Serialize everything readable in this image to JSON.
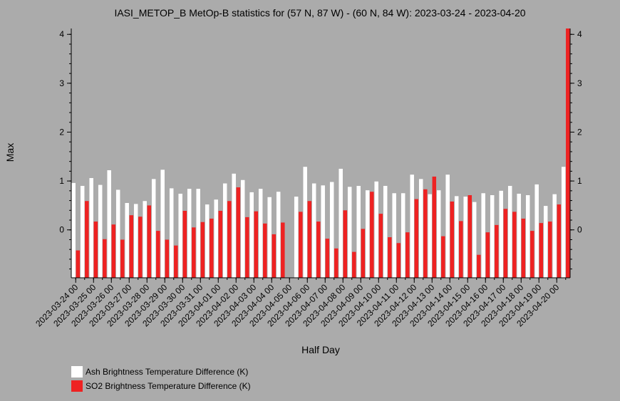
{
  "chart_data": {
    "type": "bar",
    "title": "IASI_METOP_B MetOp-B statistics for (57 N, 87 W) - (60 N, 84 W): 2023-03-24 - 2023-04-20",
    "xlabel": "Half Day",
    "ylabel": "Max",
    "ylim": [
      -0.98,
      4.12
    ],
    "yticks": [
      "0",
      "1",
      "2",
      "3",
      "4"
    ],
    "xtick_labels": [
      "2023-03-24 00",
      "2023-03-25 00",
      "2023-03-26 00",
      "2023-03-27 00",
      "2023-03-28 00",
      "2023-03-29 00",
      "2023-03-30 00",
      "2023-03-31 00",
      "2023-04-01 00",
      "2023-04-02 00",
      "2023-04-03 00",
      "2023-04-04 00",
      "2023-04-05 00",
      "2023-04-06 00",
      "2023-04-07 00",
      "2023-04-08 00",
      "2023-04-09 00",
      "2023-04-10 00",
      "2023-04-11 00",
      "2023-04-12 00",
      "2023-04-13 00",
      "2023-04-14 00",
      "2023-04-15 00",
      "2023-04-16 00",
      "2023-04-17 00",
      "2023-04-18 00",
      "2023-04-19 00",
      "2023-04-20 00"
    ],
    "grid": false,
    "legend_placement": "bottom-left",
    "series": [
      {
        "name": "Ash Brightness Temperature Difference (K)",
        "color": "#ffffff",
        "values": [
          0.96,
          0.9,
          1.06,
          0.92,
          1.22,
          0.82,
          0.55,
          0.53,
          0.59,
          1.04,
          1.23,
          0.85,
          0.74,
          0.84,
          0.84,
          0.52,
          0.62,
          0.95,
          1.15,
          1.02,
          0.77,
          0.84,
          0.67,
          0.78,
          null,
          0.68,
          1.29,
          0.95,
          0.91,
          0.98,
          1.25,
          0.88,
          0.9,
          0.81,
          0.99,
          0.9,
          0.75,
          0.75,
          1.13,
          1.04,
          0.73,
          0.81,
          1.13,
          0.69,
          0.68,
          0.57,
          0.75,
          0.71,
          0.8,
          0.9,
          0.74,
          0.71,
          0.93,
          0.49,
          0.73,
          1.29
        ]
      },
      {
        "name": "SO2 Brightness Temperature Difference (K)",
        "color": "#ee2222",
        "values": [
          -0.42,
          0.59,
          0.17,
          -0.19,
          0.11,
          -0.2,
          0.3,
          0.27,
          0.5,
          -0.02,
          -0.2,
          -0.32,
          0.39,
          0.05,
          0.16,
          0.23,
          0.39,
          0.59,
          0.87,
          0.26,
          0.38,
          0.13,
          -0.09,
          0.15,
          null,
          0.37,
          0.59,
          0.17,
          -0.18,
          -0.38,
          0.4,
          -0.45,
          0.02,
          0.78,
          0.33,
          -0.15,
          -0.27,
          -0.05,
          0.63,
          0.83,
          1.09,
          -0.13,
          0.58,
          0.18,
          0.71,
          -0.51,
          -0.05,
          0.1,
          0.43,
          0.37,
          0.23,
          -0.02,
          0.14,
          0.17,
          0.52,
          4.12
        ]
      }
    ]
  }
}
